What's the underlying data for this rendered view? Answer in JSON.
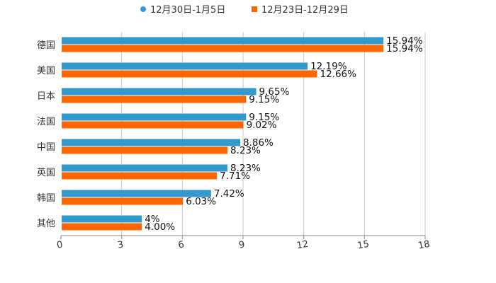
{
  "chart_data": {
    "type": "bar",
    "orientation": "horizontal",
    "categories": [
      "德国",
      "美国",
      "日本",
      "法国",
      "中国",
      "英国",
      "韩国",
      "其他"
    ],
    "series": [
      {
        "name": "12月30日-1月5日",
        "color": "#3399cc",
        "values": [
          15.94,
          12.19,
          9.65,
          9.15,
          8.86,
          8.23,
          7.42,
          4
        ],
        "labels": [
          "15.94%",
          "12.19%",
          "9.65%",
          "9.15%",
          "8.86%",
          "8.23%",
          "7.42%",
          "4%"
        ]
      },
      {
        "name": "12月23日-12月29日",
        "color": "#ff6600",
        "values": [
          15.94,
          12.66,
          9.15,
          9.02,
          8.23,
          7.71,
          6.03,
          4.0
        ],
        "labels": [
          "15.94%",
          "12.66%",
          "9.15%",
          "9.02%",
          "8.23%",
          "7.71%",
          "6.03%",
          "4.00%"
        ]
      }
    ],
    "xlim": [
      0,
      18
    ],
    "xticks": [
      "0",
      "3",
      "6",
      "9",
      "12",
      "15",
      "18"
    ],
    "grid": true,
    "legend_position": "top-center",
    "title": "",
    "xlabel": "",
    "ylabel": ""
  }
}
